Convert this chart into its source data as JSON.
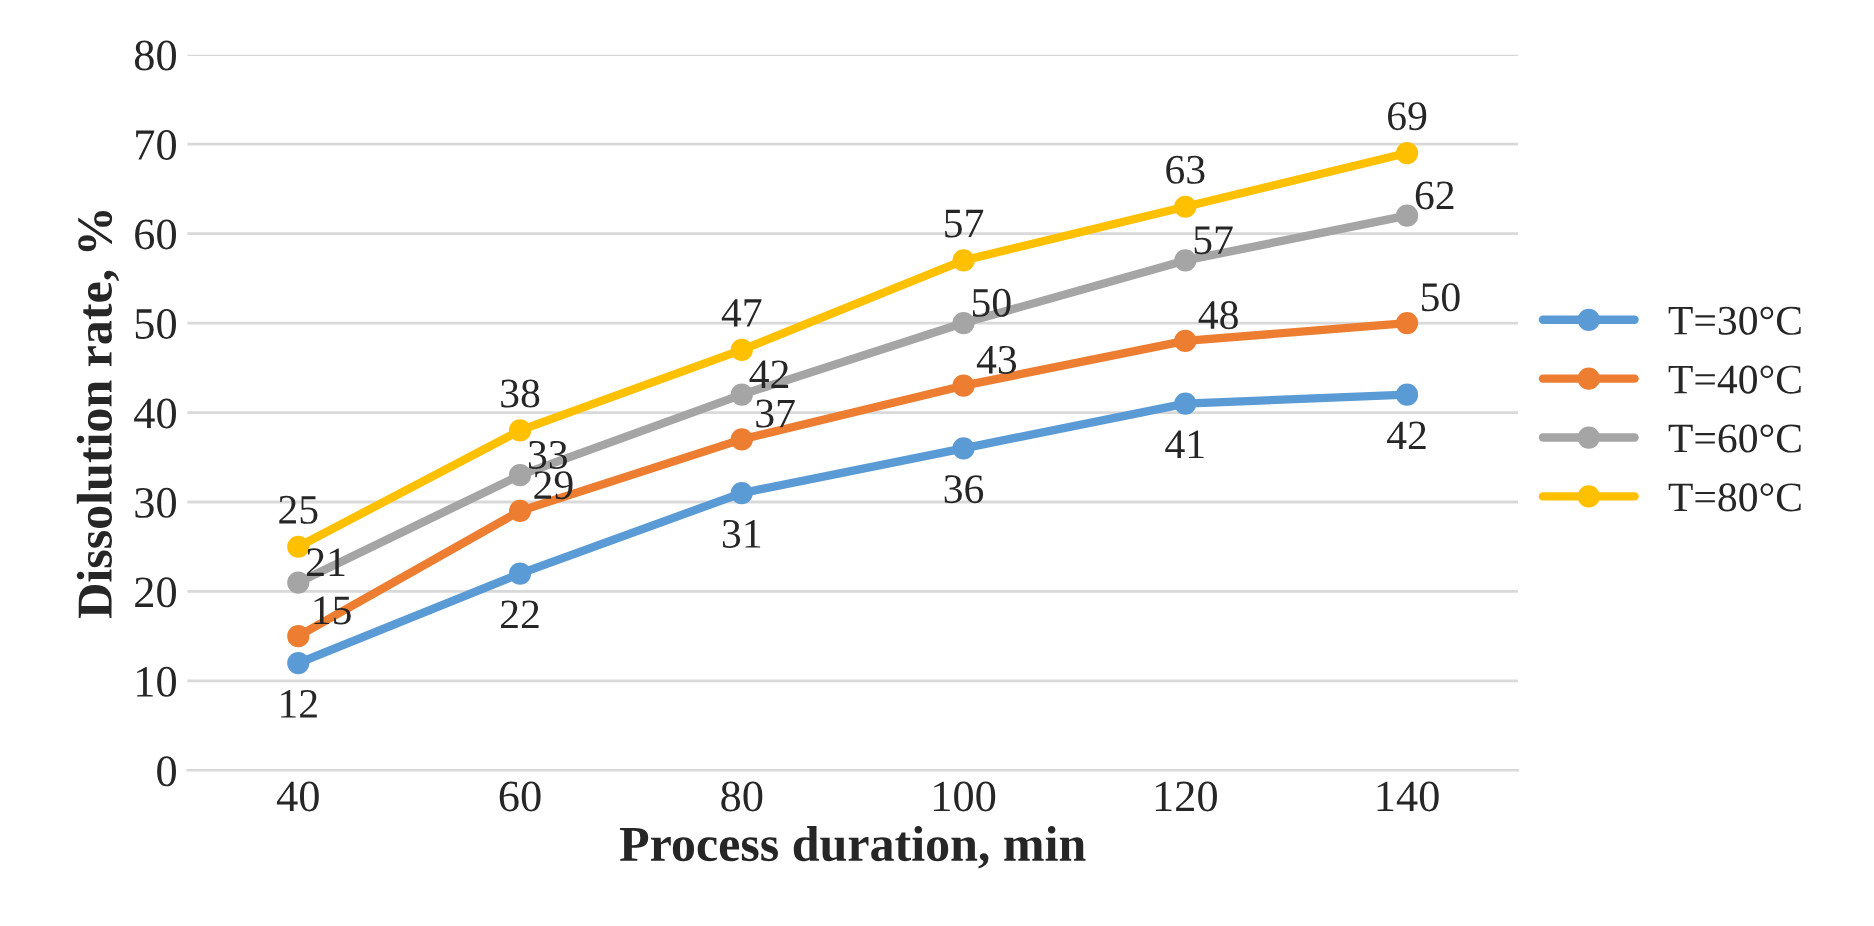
{
  "chart_data": {
    "type": "line",
    "xlabel": "Process duration, min",
    "ylabel": "Dissolution rate, %",
    "categories": [
      "40",
      "60",
      "80",
      "100",
      "120",
      "140"
    ],
    "series": [
      {
        "name": "T=30°C",
        "color": "#5b9bd5",
        "values": [
          12,
          22,
          31,
          36,
          41,
          42
        ]
      },
      {
        "name": "T=40°C",
        "color": "#ed7d31",
        "values": [
          15,
          29,
          37,
          43,
          48,
          50
        ]
      },
      {
        "name": "T=60°C",
        "color": "#a5a5a5",
        "values": [
          21,
          33,
          42,
          50,
          57,
          62
        ]
      },
      {
        "name": "T=80°C",
        "color": "#ffc000",
        "values": [
          25,
          38,
          47,
          57,
          63,
          69
        ]
      }
    ],
    "ylim": [
      0,
      80
    ],
    "yticks": [
      0,
      10,
      20,
      30,
      40,
      50,
      60,
      70,
      80
    ],
    "grid": "y",
    "legend": "right",
    "marker": "circle",
    "line_style": "solid",
    "data_labels": true
  }
}
